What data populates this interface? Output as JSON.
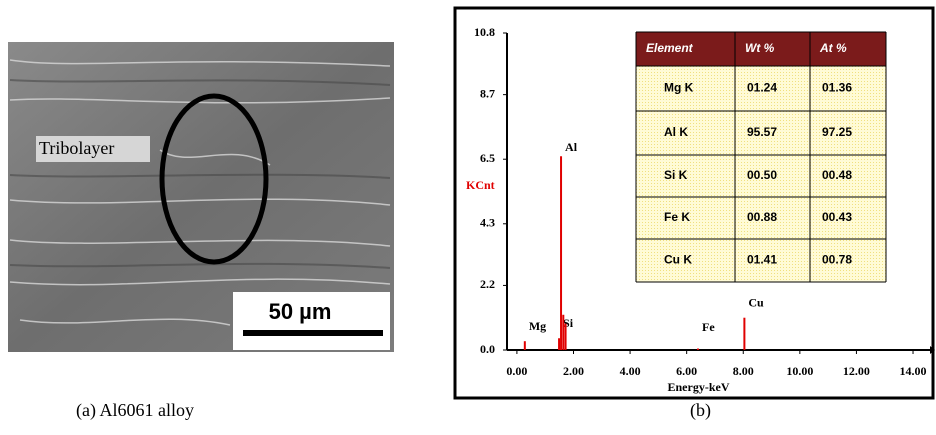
{
  "sem_image": {
    "label": "Tribolayer",
    "scale_bar": "50 µm",
    "caption": "(a) Al6061 alloy"
  },
  "chart_data": {
    "type": "spectrum",
    "caption": "(b)",
    "xlabel": "Energy-keV",
    "ylabel": "KCnt",
    "color": "#e00000",
    "series": [
      {
        "x": [
          0.28,
          1.49,
          1.56,
          1.64,
          1.72,
          6.4,
          8.04
        ],
        "values": [
          0.3,
          0.4,
          6.6,
          1.2,
          0.9,
          0.05,
          1.1
        ],
        "labels": [
          "Mg",
          "Si",
          "Al",
          null,
          null,
          "Fe",
          "Cu"
        ]
      }
    ],
    "xlim": [
      -0.35,
      14.6
    ],
    "ylim": [
      0,
      10.8
    ],
    "xticks": [
      {
        "value": 0,
        "label": "0.00"
      },
      {
        "value": 2,
        "label": "2.00"
      },
      {
        "value": 4,
        "label": "4.00"
      },
      {
        "value": 6,
        "label": "6.00"
      },
      {
        "value": 8,
        "label": "8.00"
      },
      {
        "value": 10,
        "label": "10.00"
      },
      {
        "value": 12,
        "label": "12.00"
      },
      {
        "value": 14,
        "label": "14.00"
      }
    ],
    "yticks": [
      {
        "value": 0,
        "label": "0.0"
      },
      2.2,
      4.3,
      6.5,
      8.7,
      10.8
    ]
  },
  "table": {
    "header": [
      "Element",
      "Wt %",
      "At %"
    ],
    "rows": [
      [
        "Mg K",
        "01.24",
        "01.36"
      ],
      [
        "Al K",
        "95.57",
        "97.25"
      ],
      [
        "Si K",
        "00.50",
        "00.48"
      ],
      [
        "Fe K",
        "00.88",
        "00.43"
      ],
      [
        "Cu K",
        "01.41",
        "00.78"
      ]
    ]
  }
}
